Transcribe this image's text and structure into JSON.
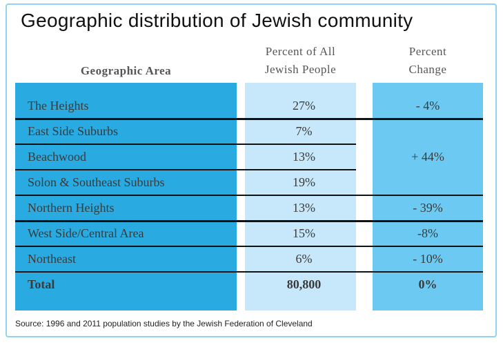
{
  "title": "Geographic distribution of Jewish community",
  "table": {
    "headers": [
      [
        "Geographic Area"
      ],
      [
        "Percent of All",
        "Jewish People"
      ],
      [
        "Percent",
        "Change"
      ]
    ],
    "rows": [
      [
        "The Heights",
        "27%",
        "- 4%"
      ],
      [
        "East Side Suburbs",
        "7%",
        "+ 44%"
      ],
      [
        "Beachwood",
        "13%"
      ],
      [
        "Solon & Southeast Suburbs",
        "19%"
      ],
      [
        "Northern Heights",
        "13%",
        "- 39%"
      ],
      [
        "West Side/Central Area",
        "15%",
        "-8%"
      ],
      [
        "Northeast",
        "6%",
        "- 10%"
      ],
      [
        "Total",
        "80,800",
        "0%"
      ]
    ]
  },
  "source": "Source: 1996 and 2011 population studies by the Jewish Federation of Cleveland"
}
